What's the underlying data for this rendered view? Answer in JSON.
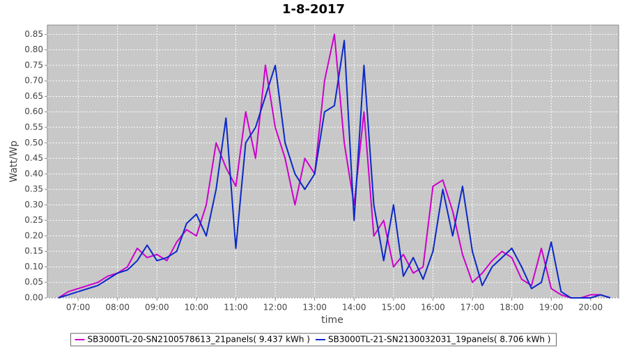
{
  "chart_data": {
    "type": "line",
    "title": "1-8-2017",
    "x_label": "time",
    "y_label": "Watt/Wp",
    "x": [
      6.5,
      6.75,
      7,
      7.25,
      7.5,
      7.75,
      8,
      8.25,
      8.5,
      8.75,
      9,
      9.25,
      9.5,
      9.75,
      10,
      10.25,
      10.5,
      10.75,
      11,
      11.25,
      11.5,
      11.75,
      12,
      12.25,
      12.5,
      12.75,
      13,
      13.25,
      13.5,
      13.75,
      14,
      14.25,
      14.5,
      14.75,
      15,
      15.25,
      15.5,
      15.75,
      16,
      16.25,
      16.5,
      16.75,
      17,
      17.25,
      17.5,
      17.75,
      18,
      18.25,
      18.5,
      18.75,
      19,
      19.25,
      19.5,
      19.75,
      20,
      20.25,
      20.5
    ],
    "series": [
      {
        "name": "SB3000TL-20-SN2100578613_21panels( 9.437 kWh )",
        "color": "#cc00cc",
        "values": [
          0,
          0.02,
          0.03,
          0.04,
          0.05,
          0.07,
          0.08,
          0.1,
          0.16,
          0.13,
          0.14,
          0.12,
          0.18,
          0.22,
          0.2,
          0.3,
          0.5,
          0.42,
          0.36,
          0.6,
          0.45,
          0.75,
          0.55,
          0.45,
          0.3,
          0.45,
          0.4,
          0.7,
          0.85,
          0.5,
          0.3,
          0.6,
          0.2,
          0.25,
          0.1,
          0.14,
          0.08,
          0.1,
          0.36,
          0.38,
          0.28,
          0.14,
          0.05,
          0.08,
          0.12,
          0.15,
          0.13,
          0.06,
          0.04,
          0.16,
          0.03,
          0.01,
          0,
          0,
          0.01,
          0.01,
          0
        ]
      },
      {
        "name": "SB3000TL-21-SN2130032031_19panels( 8.706 kWh )",
        "color": "#0a28c8",
        "values": [
          0,
          0.01,
          0.02,
          0.03,
          0.04,
          0.06,
          0.08,
          0.09,
          0.12,
          0.17,
          0.12,
          0.13,
          0.15,
          0.24,
          0.27,
          0.2,
          0.35,
          0.58,
          0.16,
          0.5,
          0.55,
          0.65,
          0.75,
          0.5,
          0.4,
          0.35,
          0.4,
          0.6,
          0.62,
          0.83,
          0.25,
          0.75,
          0.3,
          0.12,
          0.3,
          0.07,
          0.13,
          0.06,
          0.15,
          0.35,
          0.2,
          0.36,
          0.15,
          0.04,
          0.1,
          0.13,
          0.16,
          0.1,
          0.03,
          0.05,
          0.18,
          0.02,
          0,
          0,
          0,
          0.01,
          0
        ]
      }
    ],
    "xlim": [
      6.22,
      20.71
    ],
    "xticks": [
      {
        "value": 7,
        "label": "07:00"
      },
      {
        "value": 8,
        "label": "08:00"
      },
      {
        "value": 9,
        "label": "09:00"
      },
      {
        "value": 10,
        "label": "10:00"
      },
      {
        "value": 11,
        "label": "11:00"
      },
      {
        "value": 12,
        "label": "12:00"
      },
      {
        "value": 13,
        "label": "13:00"
      },
      {
        "value": 14,
        "label": "14:00"
      },
      {
        "value": 15,
        "label": "15:00"
      },
      {
        "value": 16,
        "label": "16:00"
      },
      {
        "value": 17,
        "label": "17:00"
      },
      {
        "value": 18,
        "label": "18:00"
      },
      {
        "value": 19,
        "label": "19:00"
      },
      {
        "value": 20,
        "label": "20:00"
      }
    ],
    "ylim": [
      0,
      0.88
    ],
    "yticks": [
      {
        "value": 0,
        "label": "0.00"
      },
      0.05,
      {
        "value": 0.1,
        "label": "0.10"
      },
      0.15,
      {
        "value": 0.2,
        "label": "0.20"
      },
      0.25,
      {
        "value": 0.3,
        "label": "0.30"
      },
      0.35,
      {
        "value": 0.4,
        "label": "0.40"
      },
      0.45,
      {
        "value": 0.5,
        "label": "0.50"
      },
      0.55,
      {
        "value": 0.6,
        "label": "0.60"
      },
      0.65,
      {
        "value": 0.7,
        "label": "0.70"
      },
      0.75,
      {
        "value": 0.8,
        "label": "0.80"
      },
      0.85
    ],
    "grid": true,
    "legend": "bottom"
  }
}
